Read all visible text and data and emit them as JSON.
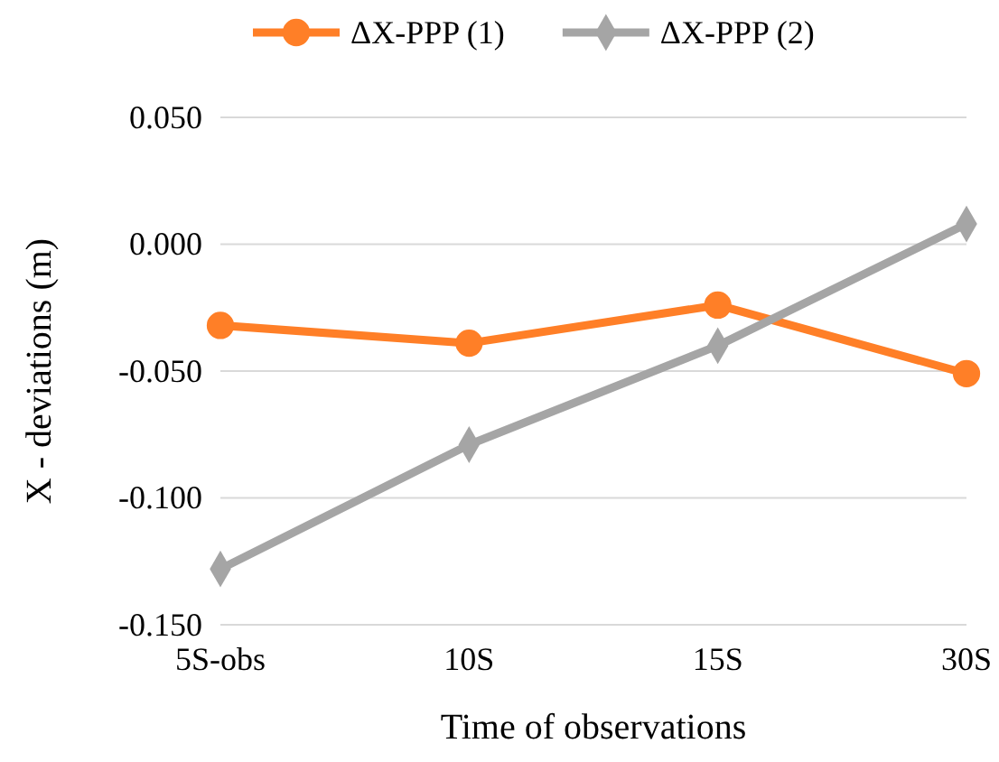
{
  "chart_data": {
    "type": "line",
    "xlabel": "Time of observations",
    "ylabel": "X - deviations (m)",
    "categories": [
      "5S-obs",
      "10S",
      "15S",
      "30S"
    ],
    "series": [
      {
        "name": "ΔX-PPP (1)",
        "color": "#ff7f27",
        "marker": "circle",
        "values": [
          -0.032,
          -0.039,
          -0.024,
          -0.051
        ]
      },
      {
        "name": "ΔX-PPP (2)",
        "color": "#a5a5a5",
        "marker": "diamond",
        "values": [
          -0.128,
          -0.079,
          -0.04,
          0.008
        ]
      }
    ],
    "ylim": [
      -0.15,
      0.05
    ],
    "yticks": [
      {
        "value": -0.15,
        "label": "-0.150"
      },
      {
        "value": -0.1,
        "label": "-0.100"
      },
      {
        "value": -0.05,
        "label": "-0.050"
      },
      {
        "value": 0,
        "label": "0.000"
      },
      {
        "value": 0.05,
        "label": "0.050"
      }
    ],
    "grid": "y",
    "legend": "top",
    "line_style": "solid"
  }
}
